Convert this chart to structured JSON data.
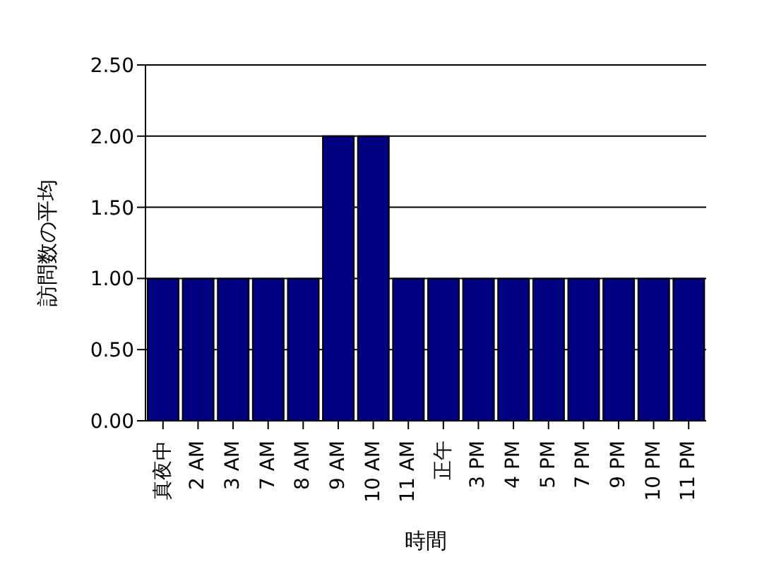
{
  "chart_data": {
    "type": "bar",
    "xlabel": "時間",
    "ylabel": "訪問数の平均",
    "categories": [
      "真夜中",
      "2 AM",
      "3 AM",
      "7 AM",
      "8 AM",
      "9 AM",
      "10 AM",
      "11 AM",
      "正午",
      "3 PM",
      "4 PM",
      "5 PM",
      "7 PM",
      "9 PM",
      "10 PM",
      "11 PM"
    ],
    "values": [
      1,
      1,
      1,
      1,
      1,
      2,
      2,
      1,
      1,
      1,
      1,
      1,
      1,
      1,
      1,
      1
    ],
    "color": "#000080",
    "ylim": [
      0,
      2.5
    ],
    "yticks": [
      {
        "value": 0,
        "label": "0.00"
      },
      {
        "value": 0.5,
        "label": "0.50"
      },
      {
        "value": 1,
        "label": "1.00"
      },
      {
        "value": 1.5,
        "label": "1.50"
      },
      {
        "value": 2,
        "label": "2.00"
      },
      {
        "value": 2.5,
        "label": "2.50"
      }
    ],
    "grid": "y",
    "legend": false
  }
}
